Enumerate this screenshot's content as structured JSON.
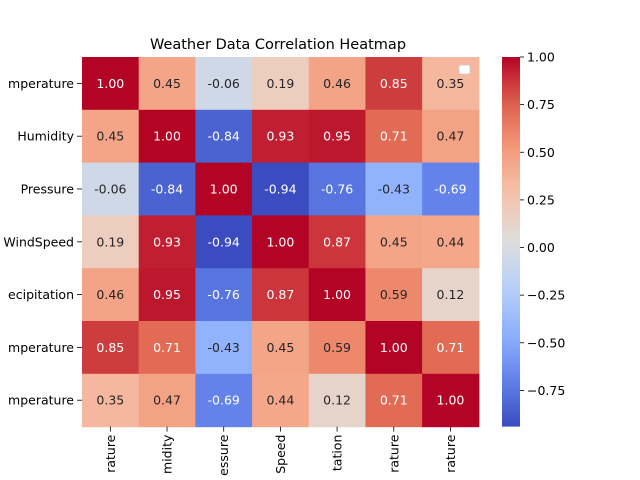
{
  "chart_data": {
    "type": "heatmap",
    "title": "Weather Data Correlation Heatmap",
    "row_labels": [
      "mperature",
      "Humidity",
      "Pressure",
      "WindSpeed",
      "ecipitation",
      "mperature",
      "mperature"
    ],
    "col_labels": [
      "rature",
      "midity",
      "essure",
      "Speed",
      "tation",
      "rature",
      "rature"
    ],
    "values": [
      [
        1.0,
        0.45,
        -0.06,
        0.19,
        0.46,
        0.85,
        0.35
      ],
      [
        0.45,
        1.0,
        -0.84,
        0.93,
        0.95,
        0.71,
        0.47
      ],
      [
        -0.06,
        -0.84,
        1.0,
        -0.94,
        -0.76,
        -0.43,
        -0.69
      ],
      [
        0.19,
        0.93,
        -0.94,
        1.0,
        0.87,
        0.45,
        0.44
      ],
      [
        0.46,
        0.95,
        -0.76,
        0.87,
        1.0,
        0.59,
        0.12
      ],
      [
        0.85,
        0.71,
        -0.43,
        0.45,
        0.59,
        1.0,
        0.71
      ],
      [
        0.35,
        0.47,
        -0.69,
        0.44,
        0.12,
        0.71,
        1.0
      ]
    ],
    "value_format": "0.00",
    "colormap": "coolwarm",
    "vmin": -0.94,
    "vmax": 1.0,
    "colorbar_ticks": [
      1.0,
      0.75,
      0.5,
      0.25,
      0.0,
      -0.25,
      -0.5,
      -0.75
    ],
    "colorbar_tick_labels": [
      "1.00",
      "0.75",
      "0.50",
      "0.25",
      "0.00",
      "−0.25",
      "−0.50",
      "−0.75"
    ],
    "legend": "top-right, empty"
  }
}
